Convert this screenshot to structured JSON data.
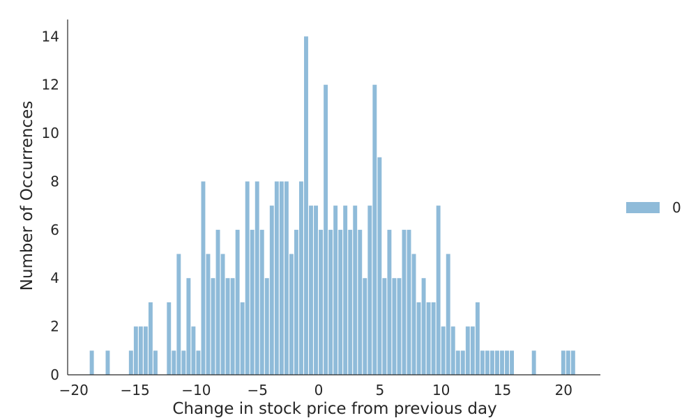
{
  "chart_data": {
    "type": "bar",
    "title": "",
    "xlabel": "Change in stock price from previous day",
    "ylabel": "Number of Occurrences",
    "xlim": [
      -20.5,
      23
    ],
    "ylim": [
      0,
      14.7
    ],
    "xticks": [
      -20,
      -15,
      -10,
      -5,
      0,
      5,
      10,
      15,
      20
    ],
    "xtick_labels": [
      "−20",
      "−15",
      "−10",
      "−5",
      "0",
      "5",
      "10",
      "15",
      "20"
    ],
    "yticks": [
      0,
      2,
      4,
      6,
      8,
      10,
      12,
      14
    ],
    "ytick_labels": [
      "0",
      "2",
      "4",
      "6",
      "8",
      "10",
      "12",
      "14"
    ],
    "bin_width": 0.393,
    "grid": false,
    "legend_position": "right",
    "color": "#8fbbd9",
    "series": [
      {
        "name": "0",
        "x": [
          -18.5,
          -17.2,
          -15.3,
          -14.9,
          -14.5,
          -14.1,
          -13.7,
          -13.3,
          -12.2,
          -11.8,
          -11.4,
          -11.0,
          -10.6,
          -10.2,
          -9.8,
          -9.4,
          -9.0,
          -8.6,
          -8.2,
          -7.8,
          -7.4,
          -7.0,
          -6.6,
          -6.2,
          -5.8,
          -5.4,
          -5.0,
          -4.6,
          -4.2,
          -3.8,
          -3.4,
          -3.0,
          -2.6,
          -2.2,
          -1.8,
          -1.4,
          -1.0,
          -0.6,
          -0.2,
          0.2,
          0.6,
          1.0,
          1.4,
          1.8,
          2.2,
          2.6,
          3.0,
          3.4,
          3.8,
          4.2,
          4.6,
          5.0,
          5.4,
          5.8,
          6.2,
          6.6,
          7.0,
          7.4,
          7.8,
          8.2,
          8.6,
          9.0,
          9.4,
          9.8,
          10.2,
          10.6,
          11.0,
          11.4,
          11.8,
          12.2,
          12.6,
          13.0,
          13.4,
          13.8,
          14.2,
          14.6,
          15.0,
          15.4,
          15.8,
          17.6,
          20.0,
          20.4,
          20.8
        ],
        "counts": [
          1,
          1,
          1,
          2,
          2,
          2,
          3,
          1,
          3,
          1,
          5,
          1,
          4,
          2,
          1,
          8,
          5,
          4,
          6,
          5,
          4,
          4,
          6,
          3,
          8,
          6,
          8,
          6,
          4,
          7,
          8,
          8,
          8,
          5,
          6,
          8,
          14,
          7,
          7,
          6,
          12,
          6,
          7,
          6,
          7,
          6,
          7,
          6,
          4,
          7,
          12,
          9,
          4,
          6,
          4,
          4,
          6,
          6,
          5,
          3,
          4,
          3,
          3,
          7,
          2,
          5,
          2,
          1,
          1,
          2,
          2,
          3,
          1,
          1,
          1,
          1,
          1,
          1,
          1,
          1,
          1,
          1,
          1
        ]
      }
    ]
  }
}
